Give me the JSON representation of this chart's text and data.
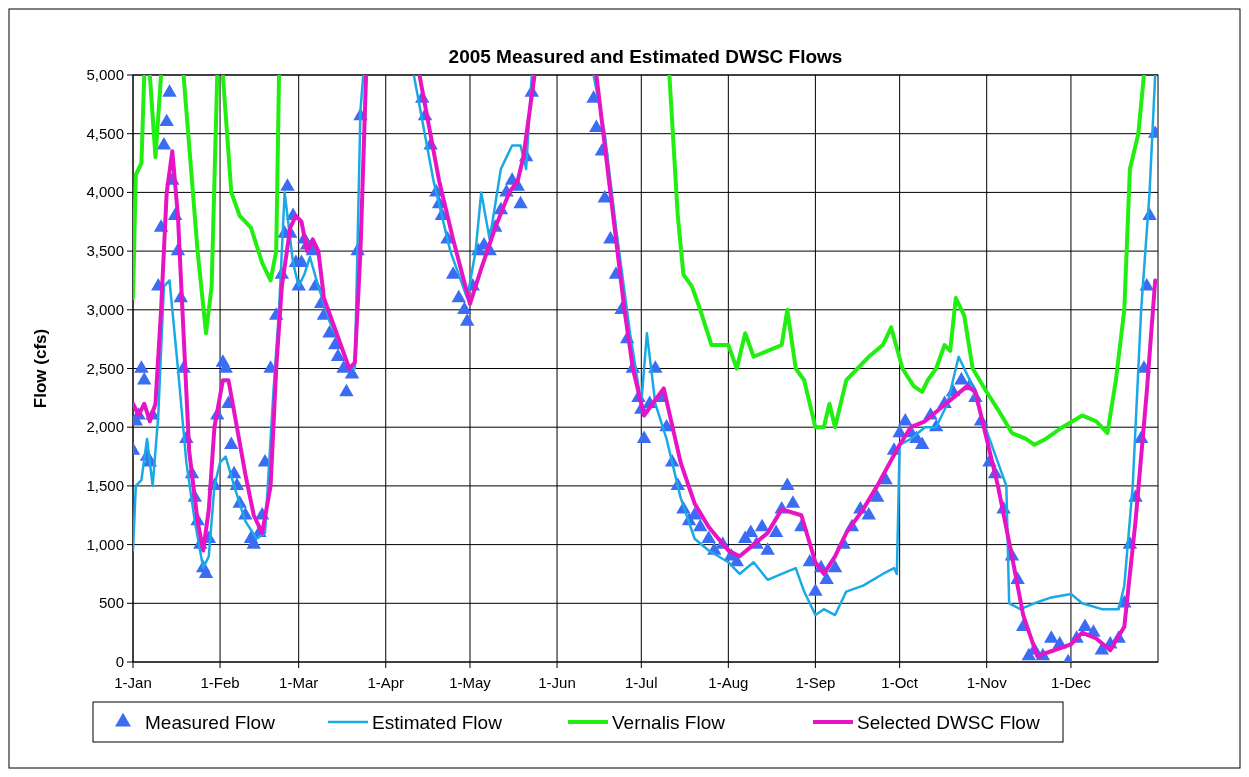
{
  "chart_data": {
    "type": "line",
    "title": "2005 Measured and Estimated DWSC Flows",
    "ylabel": "Flow (cfs)",
    "xlim": [
      "2005-01-01",
      "2006-01-01"
    ],
    "xticks": [
      {
        "value": "2005-01-01",
        "label": "1-Jan"
      },
      {
        "value": "2005-02-01",
        "label": "1-Feb"
      },
      {
        "value": "2005-03-01",
        "label": "1-Mar"
      },
      {
        "value": "2005-04-01",
        "label": "1-Apr"
      },
      {
        "value": "2005-05-01",
        "label": "1-May"
      },
      {
        "value": "2005-06-01",
        "label": "1-Jun"
      },
      {
        "value": "2005-07-01",
        "label": "1-Jul"
      },
      {
        "value": "2005-08-01",
        "label": "1-Aug"
      },
      {
        "value": "2005-09-01",
        "label": "1-Sep"
      },
      {
        "value": "2005-10-01",
        "label": "1-Oct"
      },
      {
        "value": "2005-11-01",
        "label": "1-Nov"
      },
      {
        "value": "2005-12-01",
        "label": "1-Dec"
      }
    ],
    "ylim": [
      0,
      5000
    ],
    "yticks": [
      0,
      500,
      {
        "value": 1000,
        "label": "1,000"
      },
      {
        "value": 1500,
        "label": "1,500"
      },
      {
        "value": 2000,
        "label": "2,000"
      },
      {
        "value": 2500,
        "label": "2,500"
      },
      {
        "value": 3000,
        "label": "3,000"
      },
      {
        "value": 3500,
        "label": "3,500"
      },
      {
        "value": 4000,
        "label": "4,000"
      },
      {
        "value": 4500,
        "label": "4,500"
      },
      {
        "value": 5000,
        "label": "5,000"
      }
    ],
    "grid": true,
    "legend": "bottom",
    "series": [
      {
        "name": "Measured Flow",
        "type": "scatter",
        "marker": "triangle",
        "color": "#3a6cf4",
        "x": [
          "2005-01-01",
          "2005-01-02",
          "2005-01-03",
          "2005-01-04",
          "2005-01-05",
          "2005-01-06",
          "2005-01-07",
          "2005-01-08",
          "2005-01-10",
          "2005-01-11",
          "2005-01-12",
          "2005-01-13",
          "2005-01-14",
          "2005-01-15",
          "2005-01-16",
          "2005-01-17",
          "2005-01-18",
          "2005-01-19",
          "2005-01-20",
          "2005-01-22",
          "2005-01-23",
          "2005-01-24",
          "2005-01-25",
          "2005-01-26",
          "2005-01-27",
          "2005-01-28",
          "2005-01-30",
          "2005-01-31",
          "2005-02-02",
          "2005-02-03",
          "2005-02-04",
          "2005-02-05",
          "2005-02-06",
          "2005-02-07",
          "2005-02-08",
          "2005-02-10",
          "2005-02-12",
          "2005-02-13",
          "2005-02-15",
          "2005-02-16",
          "2005-02-17",
          "2005-02-19",
          "2005-02-21",
          "2005-02-23",
          "2005-02-24",
          "2005-02-25",
          "2005-02-26",
          "2005-02-27",
          "2005-02-28",
          "2005-03-01",
          "2005-03-02",
          "2005-03-03",
          "2005-03-04",
          "2005-03-06",
          "2005-03-07",
          "2005-03-09",
          "2005-03-10",
          "2005-03-12",
          "2005-03-14",
          "2005-03-15",
          "2005-03-17",
          "2005-03-18",
          "2005-03-20",
          "2005-03-22",
          "2005-03-23",
          "2005-04-14",
          "2005-04-15",
          "2005-04-17",
          "2005-04-19",
          "2005-04-20",
          "2005-04-21",
          "2005-04-23",
          "2005-04-25",
          "2005-04-27",
          "2005-04-29",
          "2005-04-30",
          "2005-05-02",
          "2005-05-04",
          "2005-05-06",
          "2005-05-08",
          "2005-05-10",
          "2005-05-12",
          "2005-05-14",
          "2005-05-16",
          "2005-05-18",
          "2005-05-19",
          "2005-05-21",
          "2005-05-23",
          "2005-06-14",
          "2005-06-15",
          "2005-06-17",
          "2005-06-18",
          "2005-06-20",
          "2005-06-22",
          "2005-06-24",
          "2005-06-26",
          "2005-06-28",
          "2005-06-30",
          "2005-07-01",
          "2005-07-02",
          "2005-07-04",
          "2005-07-06",
          "2005-07-08",
          "2005-07-10",
          "2005-07-12",
          "2005-07-14",
          "2005-07-16",
          "2005-07-18",
          "2005-07-20",
          "2005-07-22",
          "2005-07-25",
          "2005-07-27",
          "2005-07-30",
          "2005-08-02",
          "2005-08-04",
          "2005-08-07",
          "2005-08-09",
          "2005-08-11",
          "2005-08-13",
          "2005-08-15",
          "2005-08-18",
          "2005-08-20",
          "2005-08-22",
          "2005-08-24",
          "2005-08-27",
          "2005-08-30",
          "2005-09-01",
          "2005-09-03",
          "2005-09-05",
          "2005-09-08",
          "2005-09-11",
          "2005-09-14",
          "2005-09-17",
          "2005-09-20",
          "2005-09-23",
          "2005-09-26",
          "2005-09-29",
          "2005-10-01",
          "2005-10-03",
          "2005-10-05",
          "2005-10-07",
          "2005-10-09",
          "2005-10-12",
          "2005-10-14",
          "2005-10-17",
          "2005-10-20",
          "2005-10-23",
          "2005-10-26",
          "2005-10-28",
          "2005-10-30",
          "2005-11-02",
          "2005-11-04",
          "2005-11-07",
          "2005-11-10",
          "2005-11-12",
          "2005-11-14",
          "2005-11-16",
          "2005-11-18",
          "2005-11-21",
          "2005-11-24",
          "2005-11-27",
          "2005-11-30",
          "2005-12-03",
          "2005-12-06",
          "2005-12-09",
          "2005-12-12",
          "2005-12-15",
          "2005-12-18",
          "2005-12-20",
          "2005-12-22",
          "2005-12-24",
          "2005-12-26",
          "2005-12-27",
          "2005-12-28",
          "2005-12-29",
          "2005-12-31"
        ],
        "values": [
          1800,
          2050,
          2100,
          2500,
          2400,
          1750,
          1700,
          2100,
          3200,
          3700,
          4400,
          4600,
          4850,
          4100,
          3800,
          3500,
          3100,
          2500,
          1900,
          1600,
          1400,
          1200,
          1000,
          800,
          750,
          1050,
          1500,
          2100,
          2550,
          2500,
          2200,
          1850,
          1600,
          1500,
          1350,
          1250,
          1050,
          1000,
          1100,
          1250,
          1700,
          2500,
          2950,
          3300,
          3650,
          4050,
          3650,
          3800,
          3400,
          3200,
          3400,
          3600,
          3550,
          3500,
          3200,
          3050,
          2950,
          2800,
          2700,
          2600,
          2500,
          2300,
          2450,
          3500,
          4650,
          4800,
          4650,
          4400,
          4000,
          3900,
          3800,
          3600,
          3300,
          3100,
          3000,
          2900,
          3200,
          3500,
          3550,
          3500,
          3700,
          3850,
          4000,
          4100,
          4050,
          3900,
          4300,
          4850,
          4800,
          4550,
          4350,
          3950,
          3600,
          3300,
          3000,
          2750,
          2500,
          2250,
          2150,
          1900,
          2200,
          2500,
          2250,
          2000,
          1700,
          1500,
          1300,
          1200,
          1250,
          1150,
          1050,
          950,
          1000,
          900,
          850,
          1050,
          1100,
          1000,
          1150,
          950,
          1100,
          1300,
          1500,
          1350,
          1150,
          850,
          600,
          800,
          700,
          800,
          1000,
          1150,
          1300,
          1250,
          1400,
          1550,
          1800,
          1950,
          2050,
          1950,
          1900,
          1850,
          2100,
          2000,
          2200,
          2300,
          2400,
          2350,
          2250,
          2050,
          1700,
          1600,
          1300,
          900,
          700,
          300,
          50,
          100,
          50,
          200,
          150,
          0,
          200,
          300,
          250,
          100,
          150,
          200,
          500,
          1000,
          1400,
          1900,
          2500,
          3200,
          3800,
          4500
        ]
      },
      {
        "name": "Estimated Flow",
        "color": "#1ba9e6",
        "x": [
          "2005-01-01",
          "2005-01-02",
          "2005-01-04",
          "2005-01-06",
          "2005-01-08",
          "2005-01-10",
          "2005-01-12",
          "2005-01-14",
          "2005-01-17",
          "2005-01-20",
          "2005-01-23",
          "2005-01-26",
          "2005-01-28",
          "2005-01-30",
          "2005-02-01",
          "2005-02-03",
          "2005-02-06",
          "2005-02-10",
          "2005-02-14",
          "2005-02-17",
          "2005-02-20",
          "2005-02-22",
          "2005-02-24",
          "2005-02-27",
          "2005-03-01",
          "2005-03-03",
          "2005-03-05",
          "2005-03-08",
          "2005-03-12",
          "2005-03-16",
          "2005-03-19",
          "2005-03-21",
          "2005-03-23",
          "2005-03-24",
          "2005-03-25",
          "2005-04-10",
          "2005-04-11",
          "2005-04-18",
          "2005-04-24",
          "2005-04-30",
          "2005-05-03",
          "2005-05-05",
          "2005-05-08",
          "2005-05-12",
          "2005-05-16",
          "2005-05-19",
          "2005-05-21",
          "2005-05-23",
          "2005-05-24",
          "2005-06-13",
          "2005-06-14",
          "2005-06-18",
          "2005-06-22",
          "2005-06-27",
          "2005-07-01",
          "2005-07-03",
          "2005-07-06",
          "2005-07-10",
          "2005-07-15",
          "2005-07-20",
          "2005-07-25",
          "2005-08-01",
          "2005-08-05",
          "2005-08-10",
          "2005-08-15",
          "2005-08-20",
          "2005-08-25",
          "2005-08-28",
          "2005-09-01",
          "2005-09-04",
          "2005-09-08",
          "2005-09-12",
          "2005-09-18",
          "2005-09-25",
          "2005-09-29",
          "2005-09-30",
          "2005-10-01",
          "2005-10-05",
          "2005-10-10",
          "2005-10-14",
          "2005-10-18",
          "2005-10-22",
          "2005-10-26",
          "2005-10-30",
          "2005-11-02",
          "2005-11-05",
          "2005-11-08",
          "2005-11-09",
          "2005-11-13",
          "2005-11-18",
          "2005-11-24",
          "2005-12-01",
          "2005-12-05",
          "2005-12-12",
          "2005-12-18",
          "2005-12-20",
          "2005-12-23",
          "2005-12-26",
          "2005-12-29",
          "2005-12-31"
        ],
        "values": [
          950,
          1500,
          1550,
          1900,
          1500,
          2100,
          3200,
          3250,
          2500,
          1700,
          1200,
          800,
          900,
          1500,
          1700,
          1750,
          1500,
          1200,
          1050,
          1100,
          2300,
          3000,
          4000,
          3400,
          3200,
          3300,
          3450,
          3200,
          2900,
          2700,
          2500,
          2500,
          4700,
          5000,
          null,
          null,
          5000,
          4100,
          3500,
          3100,
          3500,
          4000,
          3600,
          4200,
          4400,
          4400,
          4200,
          5000,
          null,
          null,
          5000,
          4500,
          3700,
          2800,
          2200,
          2800,
          2200,
          1900,
          1400,
          1050,
          950,
          850,
          750,
          850,
          700,
          750,
          800,
          600,
          400,
          450,
          400,
          600,
          650,
          750,
          800,
          750,
          1850,
          1900,
          2000,
          2000,
          2200,
          2600,
          2400,
          2100,
          1900,
          1700,
          1500,
          500,
          450,
          500,
          550,
          580,
          500,
          450,
          450,
          650,
          1500,
          3000,
          4000,
          5000
        ]
      },
      {
        "name": "Vernalis Flow",
        "color": "#22ee11",
        "x": [
          "2005-01-01",
          "2005-01-02",
          "2005-01-04",
          "2005-01-05",
          "2005-01-06",
          "2005-01-07",
          "2005-01-09",
          "2005-01-11",
          "2005-01-15",
          "2005-01-19",
          "2005-01-24",
          "2005-01-27",
          "2005-01-29",
          "2005-01-31",
          "2005-02-01",
          "2005-02-02",
          "2005-02-05",
          "2005-02-08",
          "2005-02-12",
          "2005-02-16",
          "2005-02-19",
          "2005-02-21",
          "2005-02-22",
          "2005-07-01",
          "2005-07-11",
          "2005-07-14",
          "2005-07-16",
          "2005-07-19",
          "2005-07-22",
          "2005-07-26",
          "2005-08-01",
          "2005-08-04",
          "2005-08-07",
          "2005-08-10",
          "2005-08-15",
          "2005-08-20",
          "2005-08-22",
          "2005-08-25",
          "2005-08-28",
          "2005-09-01",
          "2005-09-04",
          "2005-09-06",
          "2005-09-08",
          "2005-09-12",
          "2005-09-16",
          "2005-09-20",
          "2005-09-25",
          "2005-09-28",
          "2005-10-02",
          "2005-10-06",
          "2005-10-09",
          "2005-10-11",
          "2005-10-14",
          "2005-10-17",
          "2005-10-19",
          "2005-10-21",
          "2005-10-24",
          "2005-10-27",
          "2005-11-01",
          "2005-11-05",
          "2005-11-10",
          "2005-11-15",
          "2005-11-18",
          "2005-11-22",
          "2005-11-28",
          "2005-12-05",
          "2005-12-10",
          "2005-12-14",
          "2005-12-17",
          "2005-12-20",
          "2005-12-22",
          "2005-12-25",
          "2005-12-27"
        ],
        "values": [
          3100,
          4150,
          4250,
          5000,
          null,
          5000,
          4300,
          5000,
          null,
          5000,
          3500,
          2800,
          3200,
          5000,
          null,
          5000,
          4000,
          3800,
          3700,
          3400,
          3250,
          3500,
          5000,
          null,
          5000,
          3800,
          3300,
          3200,
          3000,
          2700,
          2700,
          2500,
          2800,
          2600,
          2650,
          2700,
          3000,
          2500,
          2400,
          2000,
          2000,
          2200,
          2000,
          2400,
          2500,
          2600,
          2700,
          2850,
          2500,
          2350,
          2300,
          2400,
          2500,
          2700,
          2650,
          3100,
          2950,
          2500,
          2300,
          2150,
          1950,
          1900,
          1850,
          1900,
          2000,
          2100,
          2050,
          1950,
          2400,
          3000,
          4200,
          4500,
          5000
        ]
      },
      {
        "name": "Selected DWSC Flow",
        "color": "#e614c4",
        "x": [
          "2005-01-01",
          "2005-01-03",
          "2005-01-05",
          "2005-01-07",
          "2005-01-09",
          "2005-01-11",
          "2005-01-13",
          "2005-01-15",
          "2005-01-17",
          "2005-01-19",
          "2005-01-21",
          "2005-01-24",
          "2005-01-26",
          "2005-01-28",
          "2005-01-30",
          "2005-02-02",
          "2005-02-04",
          "2005-02-07",
          "2005-02-10",
          "2005-02-13",
          "2005-02-16",
          "2005-02-19",
          "2005-02-21",
          "2005-02-23",
          "2005-02-26",
          "2005-02-28",
          "2005-03-02",
          "2005-03-04",
          "2005-03-06",
          "2005-03-08",
          "2005-03-10",
          "2005-03-13",
          "2005-03-16",
          "2005-03-19",
          "2005-03-21",
          "2005-03-23",
          "2005-03-25",
          "2005-03-26",
          "2005-04-12",
          "2005-04-13",
          "2005-04-20",
          "2005-04-25",
          "2005-05-01",
          "2005-05-05",
          "2005-05-10",
          "2005-05-15",
          "2005-05-18",
          "2005-05-20",
          "2005-05-24",
          "2005-05-25",
          "2005-06-14",
          "2005-06-15",
          "2005-06-20",
          "2005-06-25",
          "2005-06-28",
          "2005-07-02",
          "2005-07-05",
          "2005-07-09",
          "2005-07-15",
          "2005-07-20",
          "2005-07-25",
          "2005-08-01",
          "2005-08-05",
          "2005-08-10",
          "2005-08-15",
          "2005-08-20",
          "2005-08-27",
          "2005-09-01",
          "2005-09-04",
          "2005-09-08",
          "2005-09-12",
          "2005-09-18",
          "2005-09-23",
          "2005-10-01",
          "2005-10-05",
          "2005-10-10",
          "2005-10-15",
          "2005-10-20",
          "2005-10-25",
          "2005-10-28",
          "2005-11-01",
          "2005-11-05",
          "2005-11-10",
          "2005-11-14",
          "2005-11-19",
          "2005-11-25",
          "2005-12-01",
          "2005-12-05",
          "2005-12-10",
          "2005-12-15",
          "2005-12-20",
          "2005-12-24",
          "2005-12-28",
          "2005-12-31"
        ],
        "values": [
          2200,
          2100,
          2200,
          2050,
          2200,
          3000,
          4000,
          4350,
          3800,
          2800,
          1800,
          1200,
          950,
          1300,
          2000,
          2400,
          2400,
          2000,
          1600,
          1250,
          1100,
          1500,
          2500,
          3200,
          3700,
          3800,
          3750,
          3500,
          3600,
          3500,
          3100,
          2900,
          2700,
          2500,
          2550,
          3500,
          5000,
          null,
          null,
          5000,
          4100,
          3600,
          3050,
          3350,
          3700,
          4000,
          4100,
          4300,
          5000,
          null,
          null,
          5000,
          4000,
          3000,
          2500,
          2100,
          2200,
          2330,
          1700,
          1350,
          1150,
          950,
          900,
          1000,
          1100,
          1300,
          1250,
          850,
          750,
          900,
          1100,
          1300,
          1500,
          1850,
          2000,
          2050,
          2150,
          2250,
          2350,
          2300,
          1900,
          1500,
          900,
          400,
          50,
          100,
          150,
          250,
          200,
          100,
          300,
          1200,
          2300,
          3250
        ]
      }
    ]
  }
}
